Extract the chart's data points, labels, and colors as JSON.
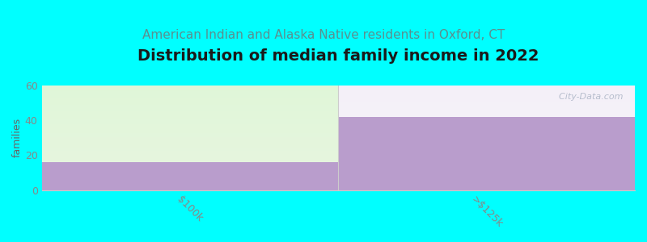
{
  "title": "Distribution of median family income in 2022",
  "subtitle": "American Indian and Alaska Native residents in Oxford, CT",
  "categories": [
    "$100k",
    ">$125k"
  ],
  "values": [
    16,
    42
  ],
  "ylim": [
    0,
    60
  ],
  "yticks": [
    0,
    20,
    40,
    60
  ],
  "ylabel": "families",
  "bar_color": "#b99dcc",
  "bar_alpha": 1.0,
  "background_color": "#00FFFF",
  "plot_bg_left": "#e8f5e0",
  "plot_bg_right": "#f0eef6",
  "title_color": "#1a1a1a",
  "subtitle_color": "#5a9090",
  "axis_color": "#666666",
  "title_fontsize": 14,
  "subtitle_fontsize": 11,
  "watermark": "  City-Data.com",
  "tick_color": "#888888",
  "tick_fontsize": 9,
  "ylabel_fontsize": 9
}
